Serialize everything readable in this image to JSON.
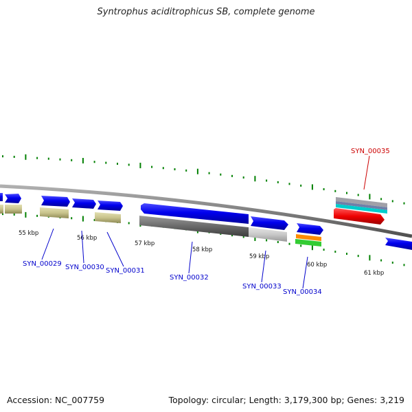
{
  "title": "Syntrophus aciditrophicus SB, complete genome",
  "footer": {
    "accession": "Accession: NC_007759",
    "summary": "Topology: circular; Length: 3,179,300 bp; Genes: 3,219"
  },
  "scale_labels": [
    "55 kbp",
    "56 kbp",
    "57 kbp",
    "58 kbp",
    "59 kbp",
    "60 kbp",
    "61 kbp"
  ],
  "gene_labels": [
    {
      "id": "SYN_00029",
      "color": "#0000cc"
    },
    {
      "id": "SYN_00030",
      "color": "#0000cc"
    },
    {
      "id": "SYN_00031",
      "color": "#0000cc"
    },
    {
      "id": "SYN_00032",
      "color": "#0000cc"
    },
    {
      "id": "SYN_00033",
      "color": "#0000cc"
    },
    {
      "id": "SYN_00034",
      "color": "#0000cc"
    },
    {
      "id": "SYN_00035",
      "color": "#cc0000"
    }
  ],
  "colors": {
    "backbone": "#888888",
    "gene_forward": "#0000ee",
    "gene_reverse_highlight": "#ee0000",
    "cds_feature": "#c8c38c",
    "gray_feature": "#707070",
    "light_gray_feature": "#c4c4c4",
    "ticks": "#008000",
    "orange": "#ff8c00",
    "green": "#33cc33",
    "cyan": "#00cccc"
  }
}
